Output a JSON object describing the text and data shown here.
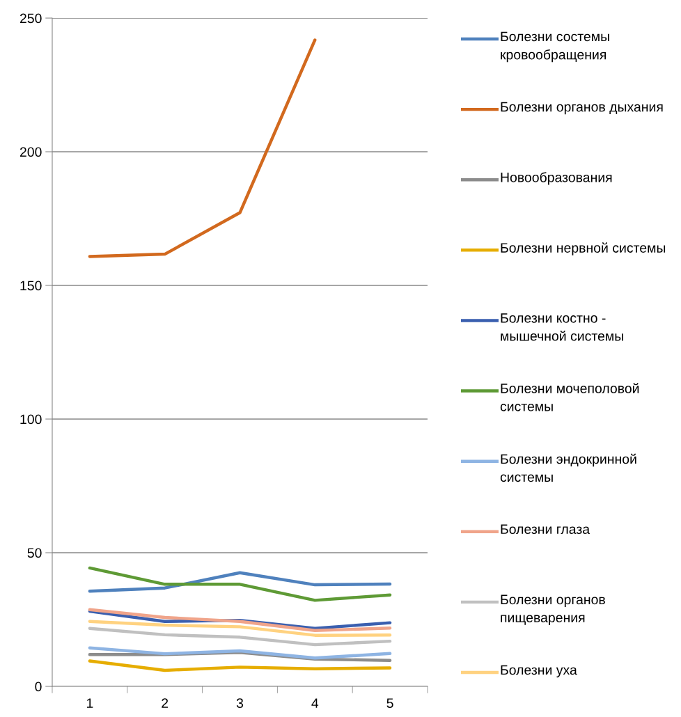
{
  "chart_data": {
    "type": "line",
    "categories": [
      "1",
      "2",
      "3",
      "4",
      "5"
    ],
    "ylim": [
      0,
      250
    ],
    "yticks": [
      0,
      50,
      100,
      150,
      200,
      250
    ],
    "grid": "y",
    "legend": "right",
    "marker": "none",
    "line_style": "solid",
    "series": [
      {
        "name": "Болезни состемы кровообращения",
        "color": "#4f81bd",
        "values": [
          35.6,
          36.8,
          42.5,
          38.0,
          38.3
        ]
      },
      {
        "name": "Болезни органов дыхания",
        "color": "#d2691e",
        "values": [
          160.8,
          161.7,
          177.2,
          241.8,
          null
        ]
      },
      {
        "name": "Новообразования",
        "color": "#8c8c8c",
        "values": [
          11.9,
          11.9,
          12.7,
          10.2,
          9.7
        ]
      },
      {
        "name": "Болезни нервной системы",
        "color": "#e6ad00",
        "values": [
          9.5,
          6.0,
          7.2,
          6.6,
          6.9
        ]
      },
      {
        "name": "Болезни костно - мышечной системы",
        "color": "#3a5faf",
        "values": [
          28.1,
          24.3,
          24.7,
          21.7,
          23.8
        ]
      },
      {
        "name": "Болезни мочеполовой системы",
        "color": "#5e9a35",
        "values": [
          44.3,
          38.2,
          38.2,
          32.2,
          34.2
        ]
      },
      {
        "name": "Болезни эндокринной системы",
        "color": "#8eb4e3",
        "values": [
          14.4,
          12.2,
          13.3,
          10.6,
          12.3
        ]
      },
      {
        "name": "Болезни глаза",
        "color": "#f0a48a",
        "values": [
          28.7,
          25.8,
          24.3,
          20.9,
          21.8
        ]
      },
      {
        "name": "Болезни органов пищеварения",
        "color": "#c0c0c0",
        "values": [
          21.7,
          19.3,
          18.4,
          15.6,
          16.9
        ]
      },
      {
        "name": "Болезни уха",
        "color": "#ffd280",
        "values": [
          24.3,
          22.9,
          22.3,
          19.1,
          19.2
        ]
      }
    ]
  }
}
